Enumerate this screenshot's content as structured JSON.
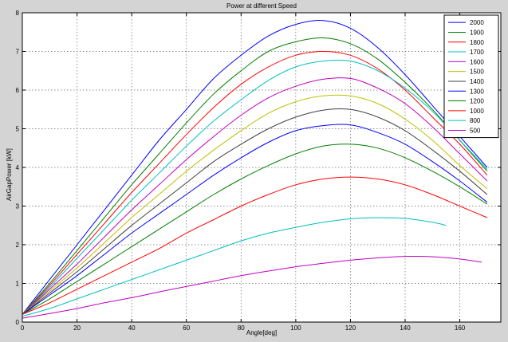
{
  "figure": {
    "bg": "#d4d4d4",
    "plot_bg": "#ffffff",
    "grid_color": "#6a6a6a",
    "axis_color": "#000000"
  },
  "chart_data": {
    "type": "line",
    "title": "Power at different Speed",
    "xlabel": "Angle[deg]",
    "ylabel": "AirGapPower [kW]",
    "xlim": [
      0,
      175
    ],
    "ylim": [
      0,
      8
    ],
    "xticks": [
      0,
      20,
      40,
      60,
      80,
      100,
      120,
      140,
      160
    ],
    "yticks": [
      0,
      1,
      2,
      3,
      4,
      5,
      6,
      7,
      8
    ],
    "grid": true,
    "legend_position": "top-right",
    "series": [
      {
        "name": "2000",
        "color": "#0000ff",
        "x": [
          0,
          10,
          20,
          30,
          40,
          50,
          60,
          70,
          80,
          90,
          100,
          110,
          120,
          130,
          140,
          150,
          160,
          170
        ],
        "y": [
          0.2,
          1.1,
          2.0,
          2.9,
          3.8,
          4.7,
          5.5,
          6.3,
          6.9,
          7.4,
          7.7,
          7.8,
          7.6,
          7.1,
          6.4,
          5.6,
          4.8,
          4.0
        ]
      },
      {
        "name": "1900",
        "color": "#007f00",
        "x": [
          0,
          10,
          20,
          30,
          40,
          50,
          60,
          70,
          80,
          90,
          100,
          110,
          120,
          130,
          140,
          150,
          160,
          170
        ],
        "y": [
          0.2,
          1.0,
          1.85,
          2.7,
          3.55,
          4.35,
          5.15,
          5.9,
          6.5,
          7.0,
          7.25,
          7.35,
          7.2,
          6.8,
          6.2,
          5.5,
          4.7,
          3.9
        ]
      },
      {
        "name": "1800",
        "color": "#ff0000",
        "x": [
          0,
          10,
          20,
          30,
          40,
          50,
          60,
          70,
          80,
          90,
          100,
          110,
          120,
          130,
          140,
          150,
          160,
          170
        ],
        "y": [
          0.2,
          0.95,
          1.75,
          2.55,
          3.35,
          4.1,
          4.85,
          5.55,
          6.15,
          6.6,
          6.9,
          7.0,
          6.9,
          6.55,
          6.0,
          5.3,
          4.6,
          3.8
        ]
      },
      {
        "name": "1700",
        "color": "#00bfbf",
        "x": [
          0,
          10,
          20,
          30,
          40,
          50,
          60,
          70,
          80,
          90,
          100,
          110,
          120,
          130,
          140,
          150,
          160,
          170
        ],
        "y": [
          0.2,
          0.9,
          1.65,
          2.4,
          3.15,
          3.85,
          4.55,
          5.2,
          5.75,
          6.25,
          6.6,
          6.75,
          6.75,
          6.5,
          6.05,
          5.45,
          4.7,
          3.95
        ]
      },
      {
        "name": "1600",
        "color": "#bf00bf",
        "x": [
          0,
          10,
          20,
          30,
          40,
          50,
          60,
          70,
          80,
          90,
          100,
          110,
          120,
          130,
          140,
          150,
          160,
          170
        ],
        "y": [
          0.2,
          0.85,
          1.5,
          2.2,
          2.9,
          3.55,
          4.2,
          4.8,
          5.35,
          5.8,
          6.1,
          6.28,
          6.3,
          6.05,
          5.65,
          5.05,
          4.35,
          3.65
        ]
      },
      {
        "name": "1500",
        "color": "#bfbf00",
        "x": [
          0,
          10,
          20,
          30,
          40,
          50,
          60,
          70,
          80,
          90,
          100,
          110,
          120,
          130,
          140,
          150,
          160,
          170
        ],
        "y": [
          0.2,
          0.8,
          1.4,
          2.05,
          2.7,
          3.3,
          3.9,
          4.45,
          4.95,
          5.4,
          5.7,
          5.85,
          5.85,
          5.65,
          5.25,
          4.7,
          4.05,
          3.45
        ]
      },
      {
        "name": "1400",
        "color": "#404040",
        "x": [
          0,
          10,
          20,
          30,
          40,
          50,
          60,
          70,
          80,
          90,
          100,
          110,
          120,
          130,
          140,
          150,
          160,
          170
        ],
        "y": [
          0.2,
          0.75,
          1.3,
          1.9,
          2.5,
          3.05,
          3.6,
          4.15,
          4.6,
          5.0,
          5.3,
          5.48,
          5.5,
          5.3,
          4.95,
          4.45,
          3.9,
          3.3
        ]
      },
      {
        "name": "1300",
        "color": "#0000ff",
        "x": [
          0,
          10,
          20,
          30,
          40,
          50,
          60,
          70,
          80,
          90,
          100,
          110,
          120,
          130,
          140,
          150,
          160,
          170
        ],
        "y": [
          0.2,
          0.7,
          1.2,
          1.75,
          2.3,
          2.8,
          3.3,
          3.8,
          4.25,
          4.65,
          4.95,
          5.08,
          5.1,
          4.9,
          4.6,
          4.15,
          3.65,
          3.1
        ]
      },
      {
        "name": "1200",
        "color": "#007f00",
        "x": [
          0,
          10,
          20,
          30,
          40,
          50,
          60,
          70,
          80,
          90,
          100,
          110,
          120,
          130,
          140,
          150,
          160,
          170
        ],
        "y": [
          0.2,
          0.6,
          1.05,
          1.5,
          1.95,
          2.4,
          2.85,
          3.3,
          3.7,
          4.05,
          4.35,
          4.55,
          4.6,
          4.5,
          4.25,
          3.9,
          3.5,
          3.05
        ]
      },
      {
        "name": "1000",
        "color": "#ff0000",
        "x": [
          0,
          10,
          20,
          30,
          40,
          50,
          60,
          70,
          80,
          90,
          100,
          110,
          120,
          130,
          140,
          150,
          160,
          170
        ],
        "y": [
          0.2,
          0.5,
          0.85,
          1.2,
          1.55,
          1.9,
          2.3,
          2.65,
          3.0,
          3.3,
          3.55,
          3.7,
          3.75,
          3.7,
          3.55,
          3.3,
          3.0,
          2.7
        ]
      },
      {
        "name": "800",
        "color": "#00bfbf",
        "x": [
          0,
          10,
          20,
          30,
          40,
          50,
          60,
          70,
          80,
          90,
          100,
          110,
          120,
          130,
          140,
          150,
          155
        ],
        "y": [
          0.15,
          0.35,
          0.6,
          0.85,
          1.1,
          1.35,
          1.6,
          1.85,
          2.1,
          2.3,
          2.45,
          2.58,
          2.67,
          2.7,
          2.68,
          2.58,
          2.5
        ]
      },
      {
        "name": "500",
        "color": "#bf00bf",
        "x": [
          0,
          10,
          20,
          30,
          40,
          50,
          60,
          70,
          80,
          90,
          100,
          110,
          120,
          130,
          140,
          150,
          160,
          168
        ],
        "y": [
          0.1,
          0.22,
          0.35,
          0.5,
          0.63,
          0.78,
          0.92,
          1.06,
          1.2,
          1.32,
          1.43,
          1.52,
          1.6,
          1.66,
          1.7,
          1.69,
          1.63,
          1.55
        ]
      }
    ]
  }
}
